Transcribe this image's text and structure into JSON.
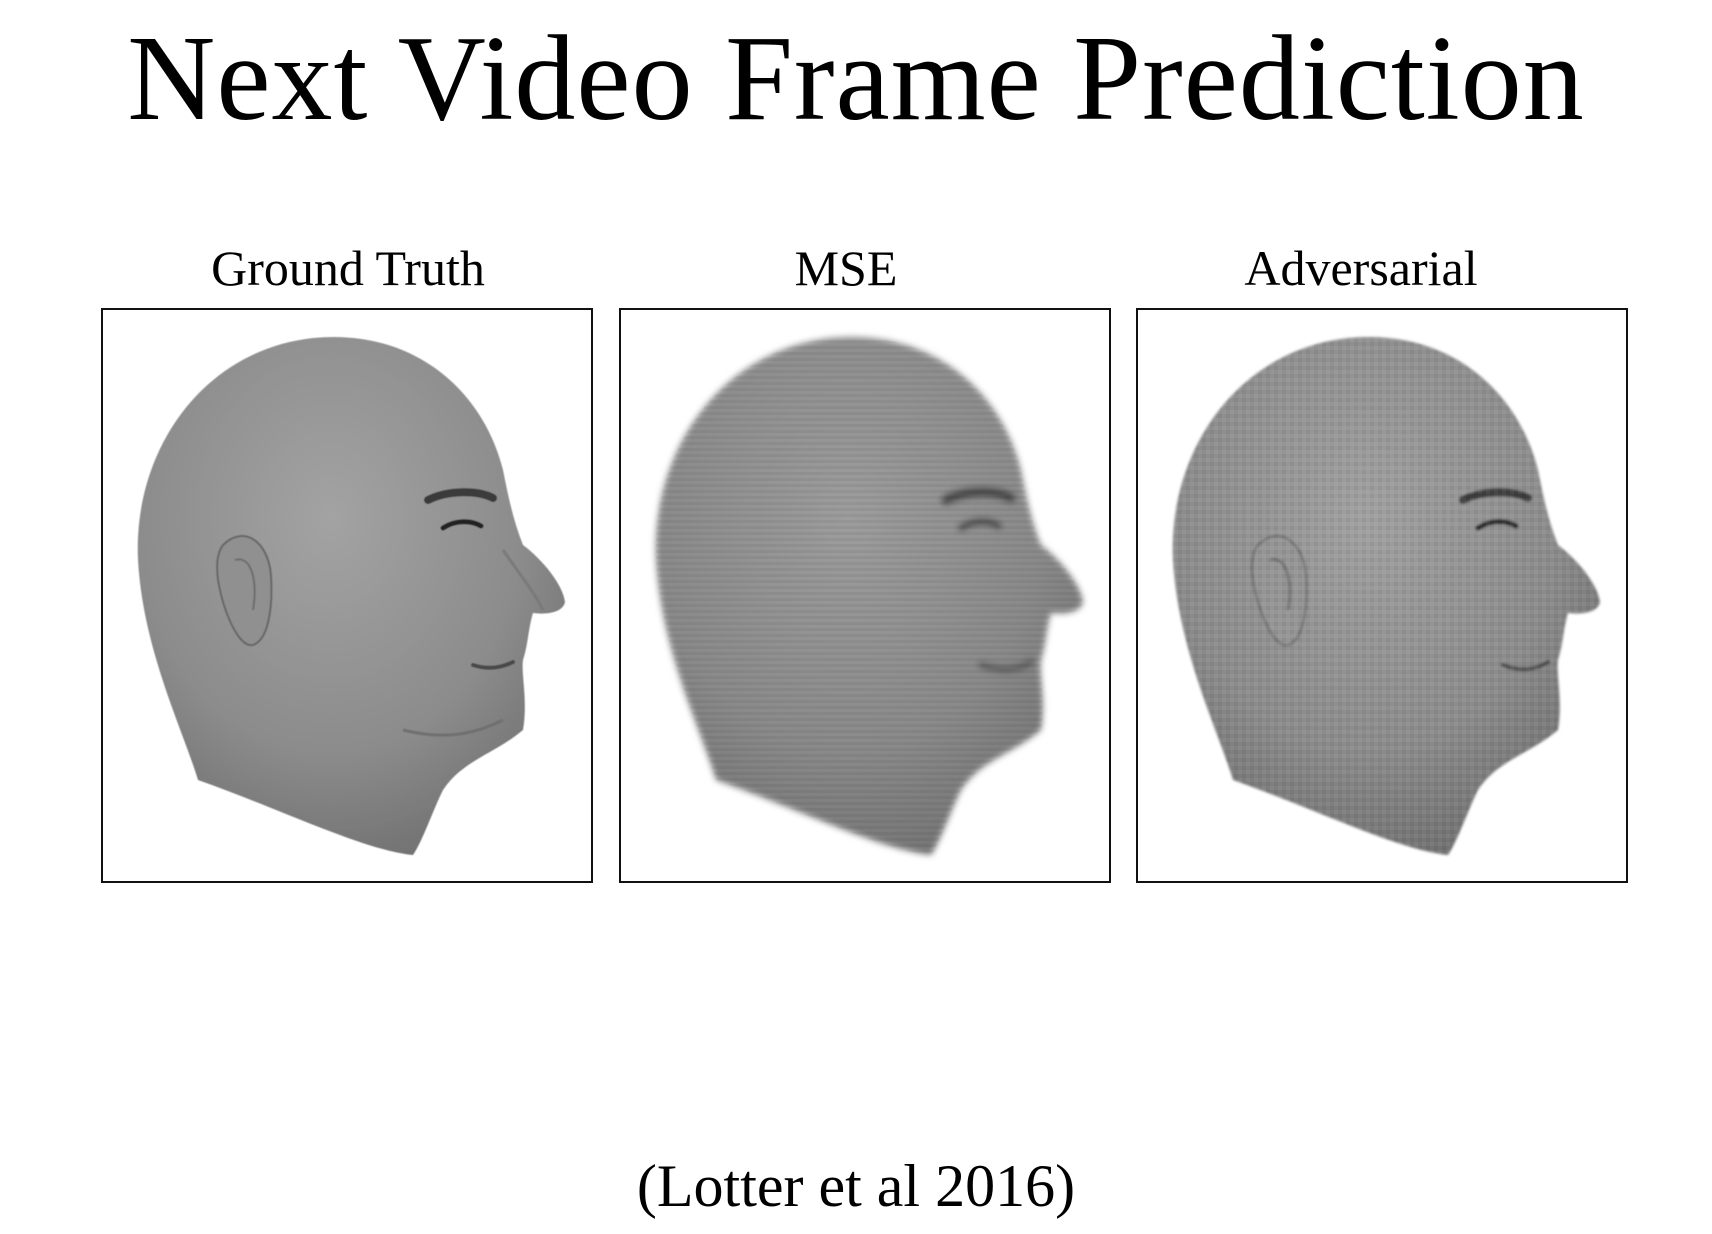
{
  "slide": {
    "title": "Next Video Frame Prediction",
    "citation": "(Lotter et al 2016)"
  },
  "panels": [
    {
      "label": "Ground Truth",
      "image": "bald-head-profile-sharp"
    },
    {
      "label": "MSE",
      "image": "bald-head-profile-blurry"
    },
    {
      "label": "Adversarial",
      "image": "bald-head-profile-textured"
    }
  ]
}
